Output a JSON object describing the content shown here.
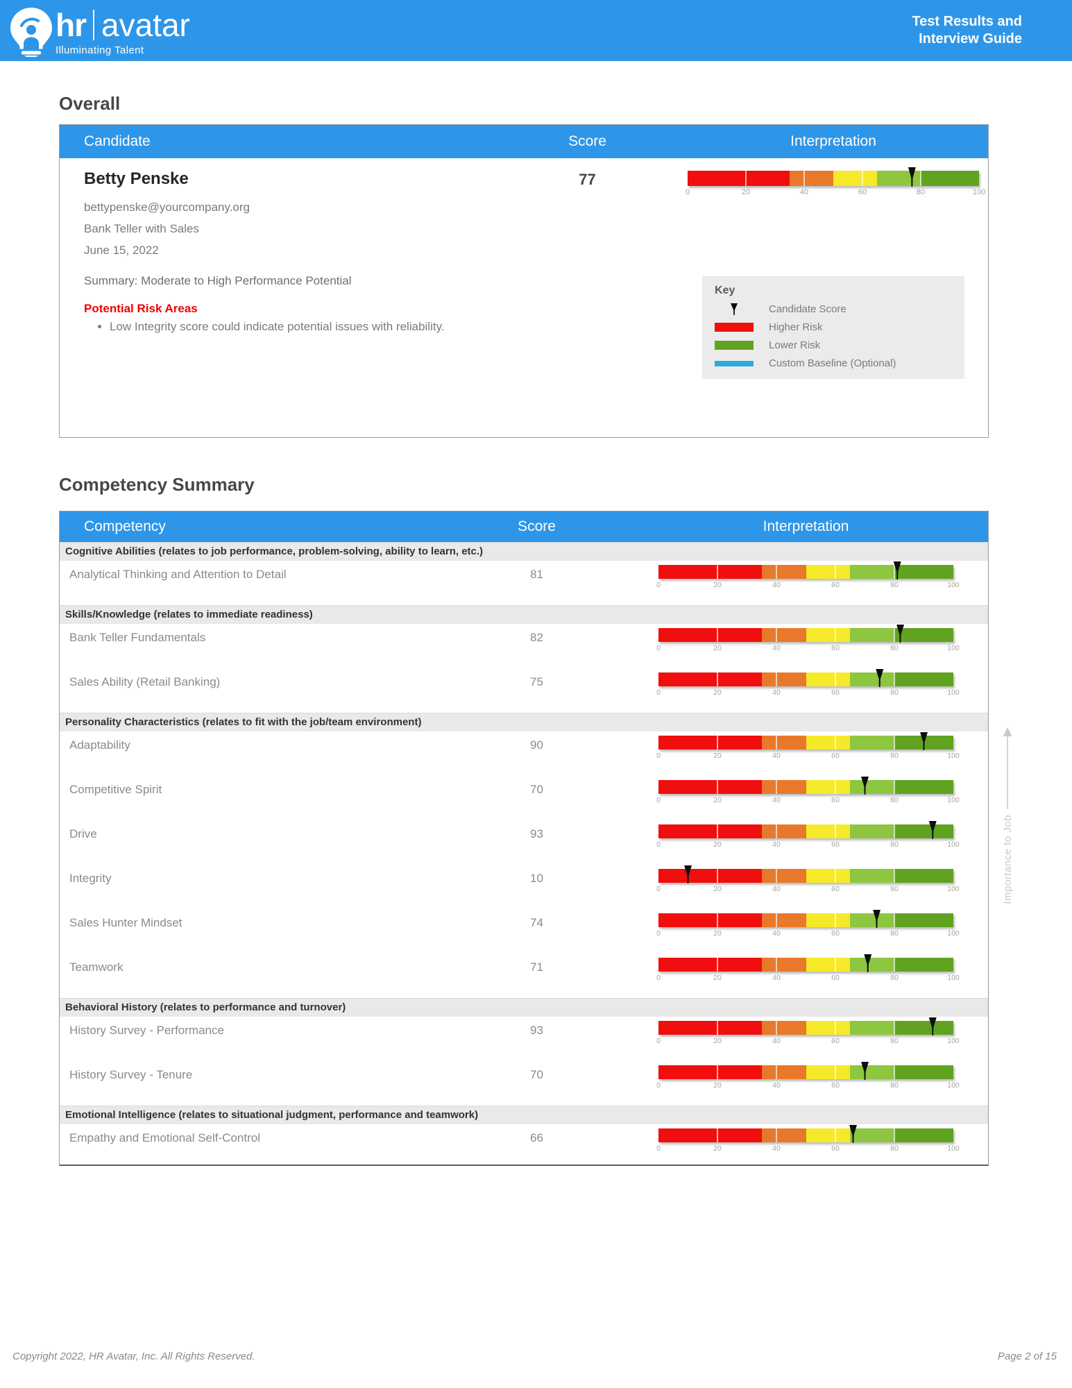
{
  "header": {
    "brand_hr": "hr",
    "brand_avatar": "avatar",
    "tagline": "Illuminating Talent",
    "doc_title_line1": "Test Results and",
    "doc_title_line2": "Interview Guide",
    "banner_color": "#2E96E8"
  },
  "scale": {
    "ticks": [
      0,
      20,
      40,
      60,
      80,
      100
    ],
    "gridlines": [
      20,
      40,
      60,
      80
    ],
    "segments": [
      {
        "from": 0,
        "to": 35,
        "color": "#F10E0E"
      },
      {
        "from": 35,
        "to": 50,
        "color": "#E8792B"
      },
      {
        "from": 50,
        "to": 65,
        "color": "#F6E92A"
      },
      {
        "from": 65,
        "to": 80,
        "color": "#8DC63F"
      },
      {
        "from": 80,
        "to": 100,
        "color": "#61A321"
      }
    ],
    "marker_color": "#0d0d0d"
  },
  "overall": {
    "section_title": "Overall",
    "columns": [
      "Candidate",
      "Score",
      "Interpretation"
    ],
    "candidate": {
      "name": "Betty Penske",
      "email": "bettypenske@yourcompany.org",
      "position": "Bank Teller with Sales",
      "date": "June 15, 2022"
    },
    "score": 77,
    "summary": "Summary: Moderate to High Performance Potential",
    "risk_title": "Potential Risk Areas",
    "risks": [
      "Low Integrity score could indicate potential issues with reliability."
    ],
    "key": {
      "title": "Key",
      "items": [
        {
          "label": "Candidate Score",
          "swatch": "marker"
        },
        {
          "label": "Higher Risk",
          "swatch": "#F10E0E",
          "h": 13
        },
        {
          "label": "Lower Risk",
          "swatch": "#61A321",
          "h": 13
        },
        {
          "label": "Custom Baseline (Optional)",
          "swatch": "#29ABE2",
          "h": 8
        }
      ]
    }
  },
  "competency": {
    "section_title": "Competency Summary",
    "columns": [
      "Competency",
      "Score",
      "Interpretation"
    ],
    "side_label": "Importance to Job",
    "groups": [
      {
        "category": "Cognitive Abilities (relates to job performance, problem-solving, ability to learn, etc.)",
        "rows": [
          {
            "name": "Analytical Thinking and Attention to Detail",
            "score": 81
          }
        ]
      },
      {
        "category": "Skills/Knowledge (relates to immediate readiness)",
        "rows": [
          {
            "name": "Bank Teller Fundamentals",
            "score": 82
          },
          {
            "name": "Sales Ability (Retail Banking)",
            "score": 75
          }
        ]
      },
      {
        "category": "Personality Characteristics (relates to fit with the job/team environment)",
        "rows": [
          {
            "name": "Adaptability",
            "score": 90
          },
          {
            "name": "Competitive Spirit",
            "score": 70
          },
          {
            "name": "Drive",
            "score": 93
          },
          {
            "name": "Integrity",
            "score": 10
          },
          {
            "name": "Sales Hunter Mindset",
            "score": 74
          },
          {
            "name": "Teamwork",
            "score": 71
          }
        ]
      },
      {
        "category": "Behavioral History (relates to performance and turnover)",
        "rows": [
          {
            "name": "History Survey - Performance",
            "score": 93
          },
          {
            "name": "History Survey - Tenure",
            "score": 70
          }
        ]
      },
      {
        "category": "Emotional Intelligence (relates to situational judgment, performance and teamwork)",
        "rows": [
          {
            "name": "Empathy and Emotional Self-Control",
            "score": 66
          }
        ]
      }
    ]
  },
  "footer": {
    "copyright": "Copyright 2022, HR Avatar, Inc. All Rights Reserved.",
    "page": "Page 2 of 15"
  }
}
